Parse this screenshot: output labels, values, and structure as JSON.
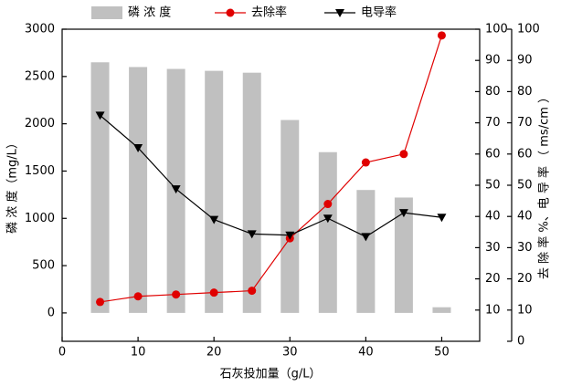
{
  "chart_data": {
    "type": "bar_line",
    "x_label": "石灰投加量（g/L）",
    "y_label": "磷 浓 度（mg/L）",
    "y2_label": "去 除 率 %、电 导 率 （ ms/cm ）",
    "x": [
      5,
      10,
      15,
      20,
      25,
      30,
      35,
      40,
      45,
      50
    ],
    "xlim": [
      0,
      55
    ],
    "xticks": [
      0,
      10,
      20,
      30,
      40,
      50
    ],
    "ylim": [
      -300,
      3000
    ],
    "yticks": [
      0,
      500,
      1000,
      1500,
      2000,
      2500,
      3000
    ],
    "y2lim": [
      0,
      100
    ],
    "y2ticks": [
      10,
      20,
      30,
      40,
      50,
      60,
      70,
      80,
      90,
      100
    ],
    "y3lim": [
      0,
      100
    ],
    "y3ticks": [
      0,
      10,
      20,
      30,
      40,
      50,
      60,
      70,
      80,
      90,
      100
    ],
    "legend": "top",
    "series": [
      {
        "name": "磷 浓 度",
        "kind": "bar",
        "color": "#c0c0c0",
        "values": [
          2650,
          2600,
          2580,
          2560,
          2540,
          2040,
          1700,
          1300,
          1220,
          60
        ]
      },
      {
        "name": "去除率",
        "kind": "line",
        "marker": "circle",
        "color": "#e00000",
        "axis": "y2",
        "values": [
          12.6,
          14.4,
          15,
          15.6,
          16.2,
          33,
          44,
          57.3,
          60,
          98
        ]
      },
      {
        "name": "电导率",
        "kind": "line",
        "marker": "triangle-down",
        "color": "#000000",
        "axis": "y2",
        "values": [
          72.4,
          62,
          48.8,
          39,
          34.4,
          34,
          39.4,
          33.5,
          41.2,
          39.7
        ]
      }
    ]
  }
}
